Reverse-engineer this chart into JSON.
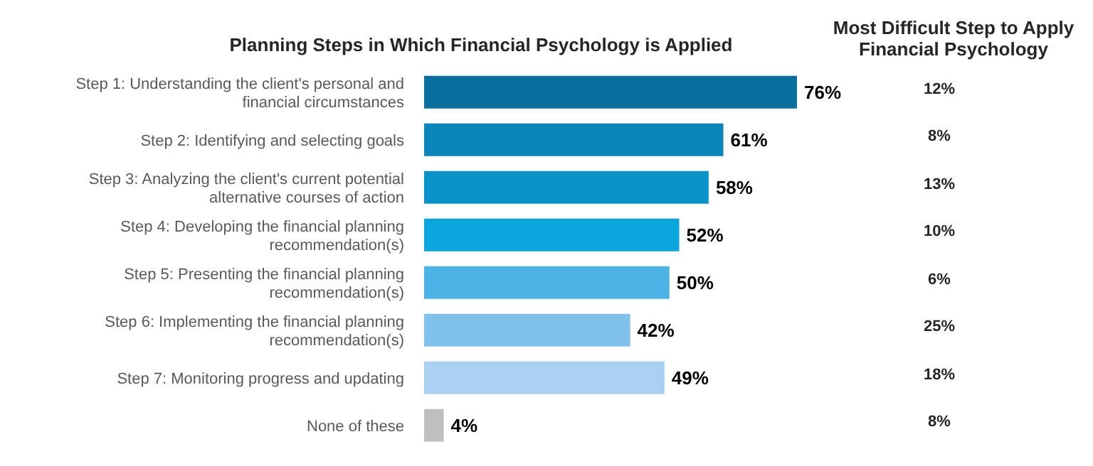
{
  "chart_data": [
    {
      "type": "bar",
      "orientation": "horizontal",
      "title": "Planning Steps in Which Financial Psychology is Applied",
      "categories": [
        "Step 1: Understanding the client's personal and financial circumstances",
        "Step 2: Identifying and selecting goals",
        "Step 3: Analyzing the client's current potential alternative courses of action",
        "Step 4: Developing the financial planning recommendation(s)",
        "Step 5: Presenting the financial planning recommendation(s)",
        "Step 6: Implementing the financial planning recommendation(s)",
        "Step 7: Monitoring progress and updating",
        "None of these"
      ],
      "values": [
        76,
        61,
        58,
        52,
        50,
        42,
        49,
        4
      ],
      "colors": [
        "#0a6f9e",
        "#0b86bd",
        "#0a93c8",
        "#0aa5dd",
        "#4cb3e6",
        "#7fc1ea",
        "#a9d0f0",
        "#bfbfbf"
      ],
      "value_labels": [
        "76%",
        "61%",
        "58%",
        "52%",
        "50%",
        "42%",
        "49%",
        "4%"
      ]
    },
    {
      "type": "other",
      "title": "Most Difficult Step to Apply Financial Psychology",
      "categories": [
        null,
        null,
        null,
        null,
        null,
        null,
        null,
        null
      ],
      "values": [
        12,
        8,
        13,
        10,
        6,
        25,
        18,
        8
      ],
      "value_labels": [
        "12%",
        "8%",
        "13%",
        "10%",
        "6%",
        "25%",
        "18%",
        "8%"
      ]
    }
  ]
}
